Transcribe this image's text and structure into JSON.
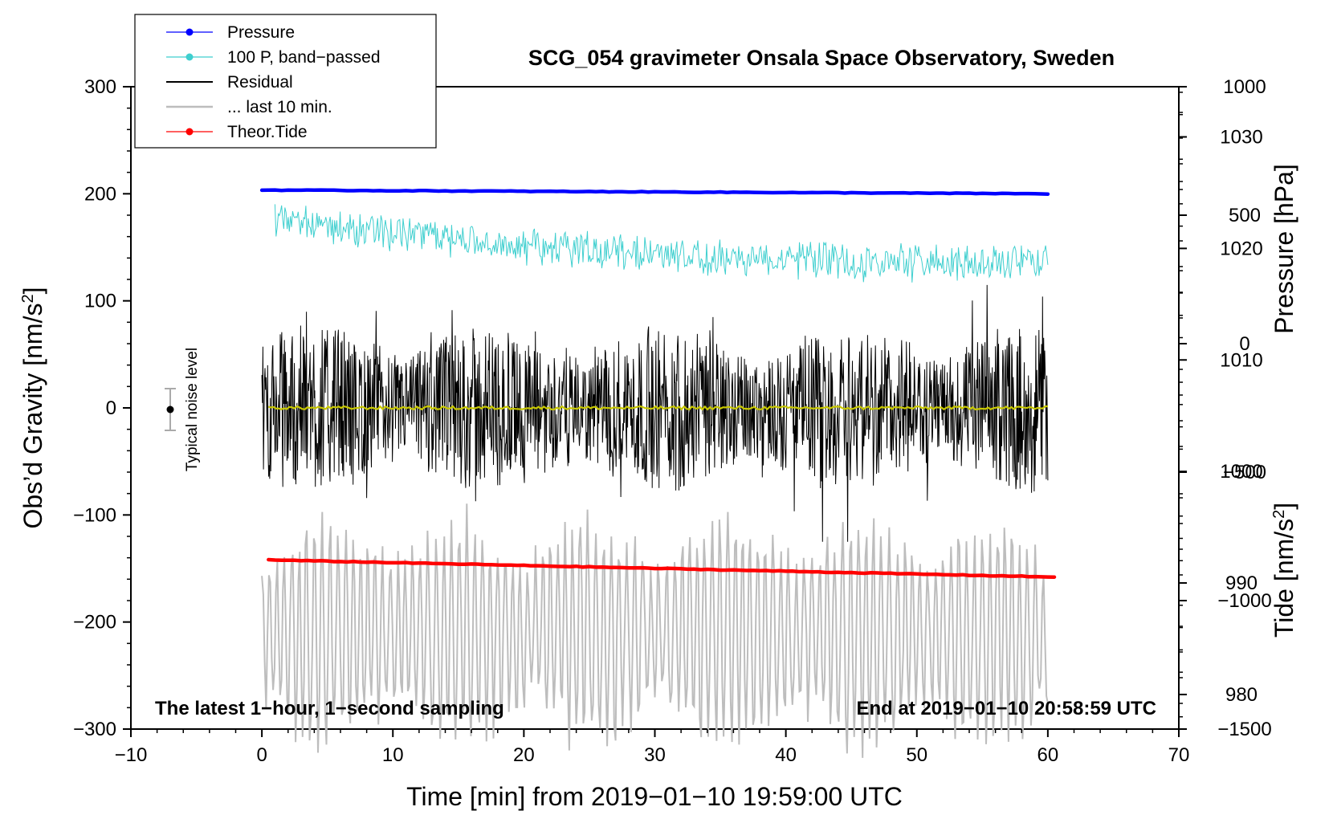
{
  "chart_data": {
    "type": "line",
    "title": "SCG_054 gravimeter Onsala Space Observatory, Sweden",
    "xlabel": "Time [min] from 2019−01−10 19:59:00 UTC",
    "ylabel_left_main": "Obs’d Gravity [nm/s",
    "ylabel_left_sup": "2",
    "ylabel_left_end": "]",
    "ylabel_right_top": "Pressure [hPa]",
    "ylabel_right_bottom_main": "Tide [nm/s",
    "ylabel_right_bottom_sup": "2",
    "ylabel_right_bottom_end": "]",
    "xlim": [
      -10,
      70
    ],
    "ylim": [
      -300,
      300
    ],
    "pressure_axis_range": [
      976.9,
      1034.5
    ],
    "tide_axis_range": [
      -1500,
      1000
    ],
    "x_ticks": [
      {
        "value": -10,
        "label": "−10"
      },
      {
        "value": 0,
        "label": "0"
      },
      {
        "value": 10,
        "label": "10"
      },
      {
        "value": 20,
        "label": "20"
      },
      {
        "value": 30,
        "label": "30"
      },
      {
        "value": 40,
        "label": "40"
      },
      {
        "value": 50,
        "label": "50"
      },
      {
        "value": 60,
        "label": "60"
      },
      {
        "value": 70,
        "label": "70"
      }
    ],
    "y_ticks": [
      {
        "value": 300,
        "label": "300"
      },
      {
        "value": 200,
        "label": "200"
      },
      {
        "value": 100,
        "label": "100"
      },
      {
        "value": 0,
        "label": "0"
      },
      {
        "value": -100,
        "label": "−100"
      },
      {
        "value": -200,
        "label": "−200"
      },
      {
        "value": -300,
        "label": "−300"
      }
    ],
    "pressure_ticks": [
      {
        "value": 980,
        "label": "980"
      },
      {
        "value": 990,
        "label": "990"
      },
      {
        "value": 1000,
        "label": "1000"
      },
      {
        "value": 1010,
        "label": "1010"
      },
      {
        "value": 1020,
        "label": "1020"
      },
      {
        "value": 1030,
        "label": "1030"
      }
    ],
    "tide_ticks": [
      {
        "value": 1000,
        "label": "1000"
      },
      {
        "value": 500,
        "label": "500"
      },
      {
        "value": 0,
        "label": "0"
      },
      {
        "value": -500,
        "label": "−500"
      },
      {
        "value": -1000,
        "label": "−1000"
      },
      {
        "value": -1500,
        "label": "−1500"
      }
    ],
    "series": [
      {
        "name": "Pressure",
        "color": "#0000ff",
        "style": "line+dot",
        "x_start": 0,
        "x_end": 60,
        "gravity_equiv_start": 203.5,
        "gravity_equiv_end": 200.0
      },
      {
        "name": "100 P, band−passed",
        "color": "#3fcfcf",
        "style": "line+dot",
        "x_start": 1,
        "x_end": 60,
        "center_start": 175,
        "center_end": 135,
        "amplitude": 18
      },
      {
        "name": "Residual",
        "color": "#000000",
        "style": "line",
        "x_start": 0,
        "x_end": 60,
        "center": 0,
        "amplitude": 55,
        "max": 125,
        "min": -125
      },
      {
        "name": "... last 10 min.",
        "color": "#bdbdbd",
        "style": "line",
        "x_start": 0,
        "x_end": 60,
        "center": -210,
        "amplitude": 75
      },
      {
        "name": "Theor.Tide",
        "color": "#ff0000",
        "style": "line+dot",
        "x_start": 0.5,
        "x_end": 60.5,
        "gravity_equiv_start": -142,
        "gravity_equiv_end": -158
      }
    ],
    "residual_mean_color": "#c8c800",
    "noise_level": {
      "label": "Typical noise level",
      "x": -7,
      "value": 0,
      "half_range": 19
    },
    "annotation_left": "The latest 1−hour, 1−second sampling",
    "annotation_right": "End at 2019−01−10 20:58:59 UTC",
    "legend_position": "top-left"
  }
}
